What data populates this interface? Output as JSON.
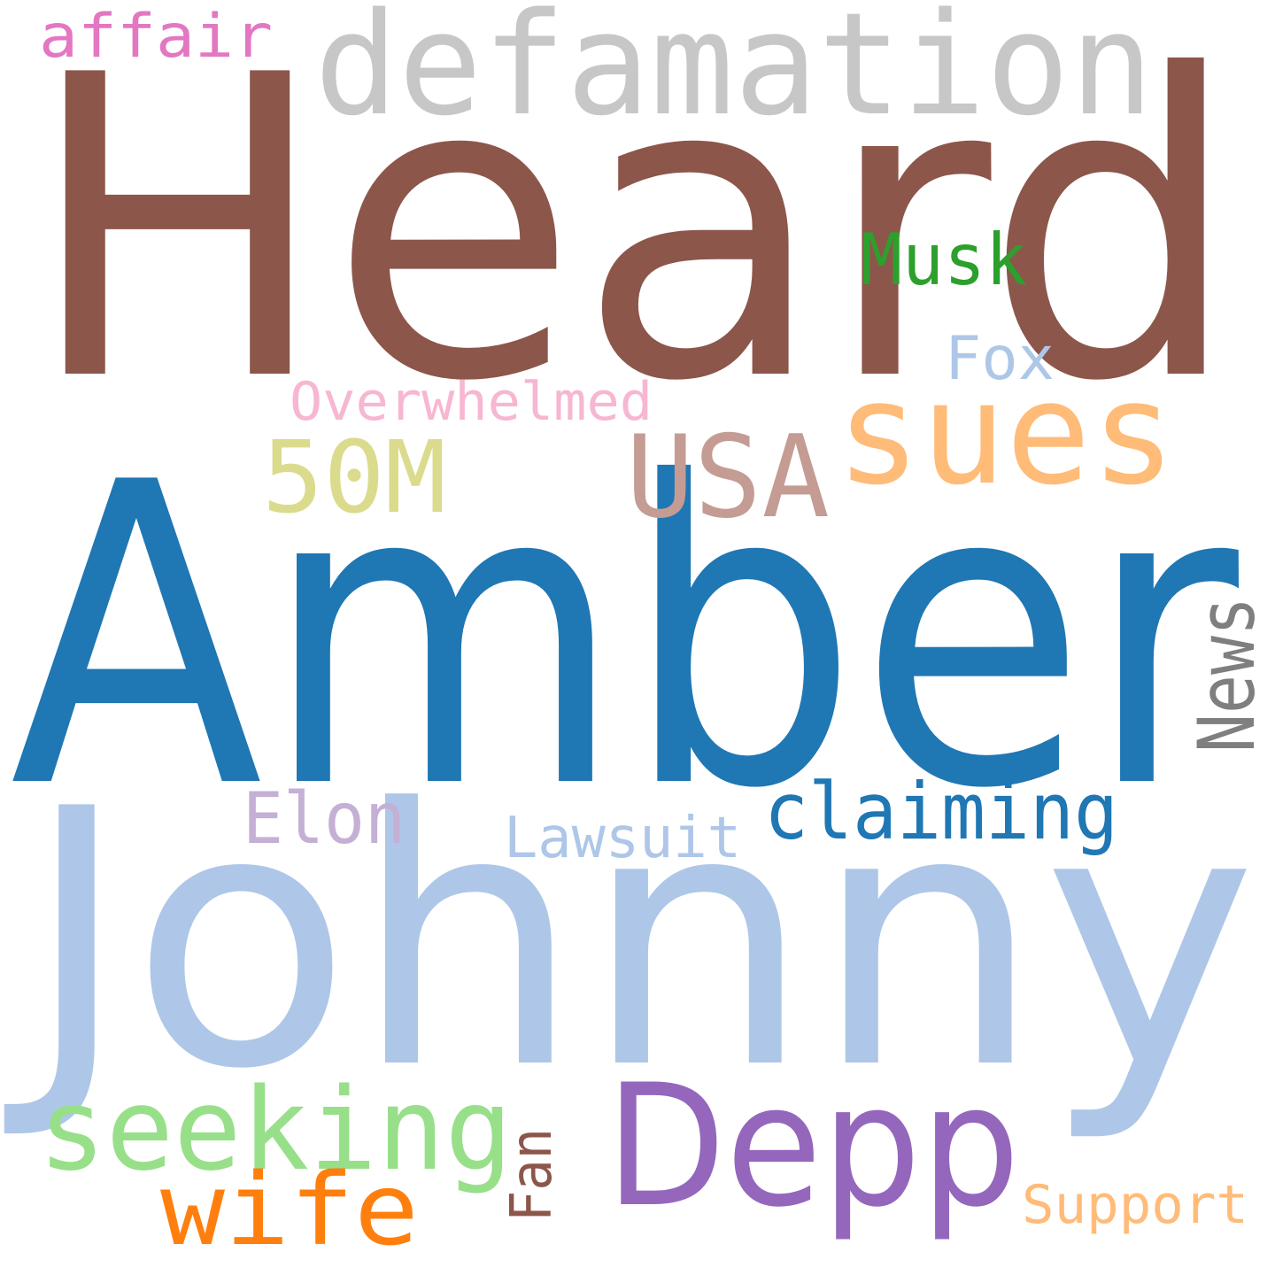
{
  "words": [
    {
      "id": "heard",
      "text": "Heard",
      "color": "#8c564b"
    },
    {
      "id": "amber",
      "text": "Amber",
      "color": "#1f77b4"
    },
    {
      "id": "johnny",
      "text": "Johnny",
      "color": "#aec7e8"
    },
    {
      "id": "defamation",
      "text": "defamation",
      "color": "#c7c7c7"
    },
    {
      "id": "depp",
      "text": "Depp",
      "color": "#9467bd"
    },
    {
      "id": "sues",
      "text": "sues",
      "color": "#ffbb78"
    },
    {
      "id": "seeking",
      "text": "seeking",
      "color": "#98df8a"
    },
    {
      "id": "usa",
      "text": "USA",
      "color": "#c49c94"
    },
    {
      "id": "50m",
      "text": "50M",
      "color": "#dbdb8d"
    },
    {
      "id": "wife",
      "text": "wife",
      "color": "#ff7f0e"
    },
    {
      "id": "claiming",
      "text": "claiming",
      "color": "#1f77b4"
    },
    {
      "id": "news",
      "text": "News",
      "color": "#7f7f7f"
    },
    {
      "id": "musk",
      "text": "Musk",
      "color": "#2ca02c"
    },
    {
      "id": "elon",
      "text": "Elon",
      "color": "#c5b0d5"
    },
    {
      "id": "affair",
      "text": "affair",
      "color": "#e377c2"
    },
    {
      "id": "fox",
      "text": "Fox",
      "color": "#aec7e8"
    },
    {
      "id": "lawsuit",
      "text": "Lawsuit",
      "color": "#aec7e8"
    },
    {
      "id": "overwhelmed",
      "text": "Overwhelmed",
      "color": "#f7b6d2"
    },
    {
      "id": "support",
      "text": "Support",
      "color": "#ffbb78"
    },
    {
      "id": "fan",
      "text": "Fan",
      "color": "#8c564b"
    }
  ]
}
